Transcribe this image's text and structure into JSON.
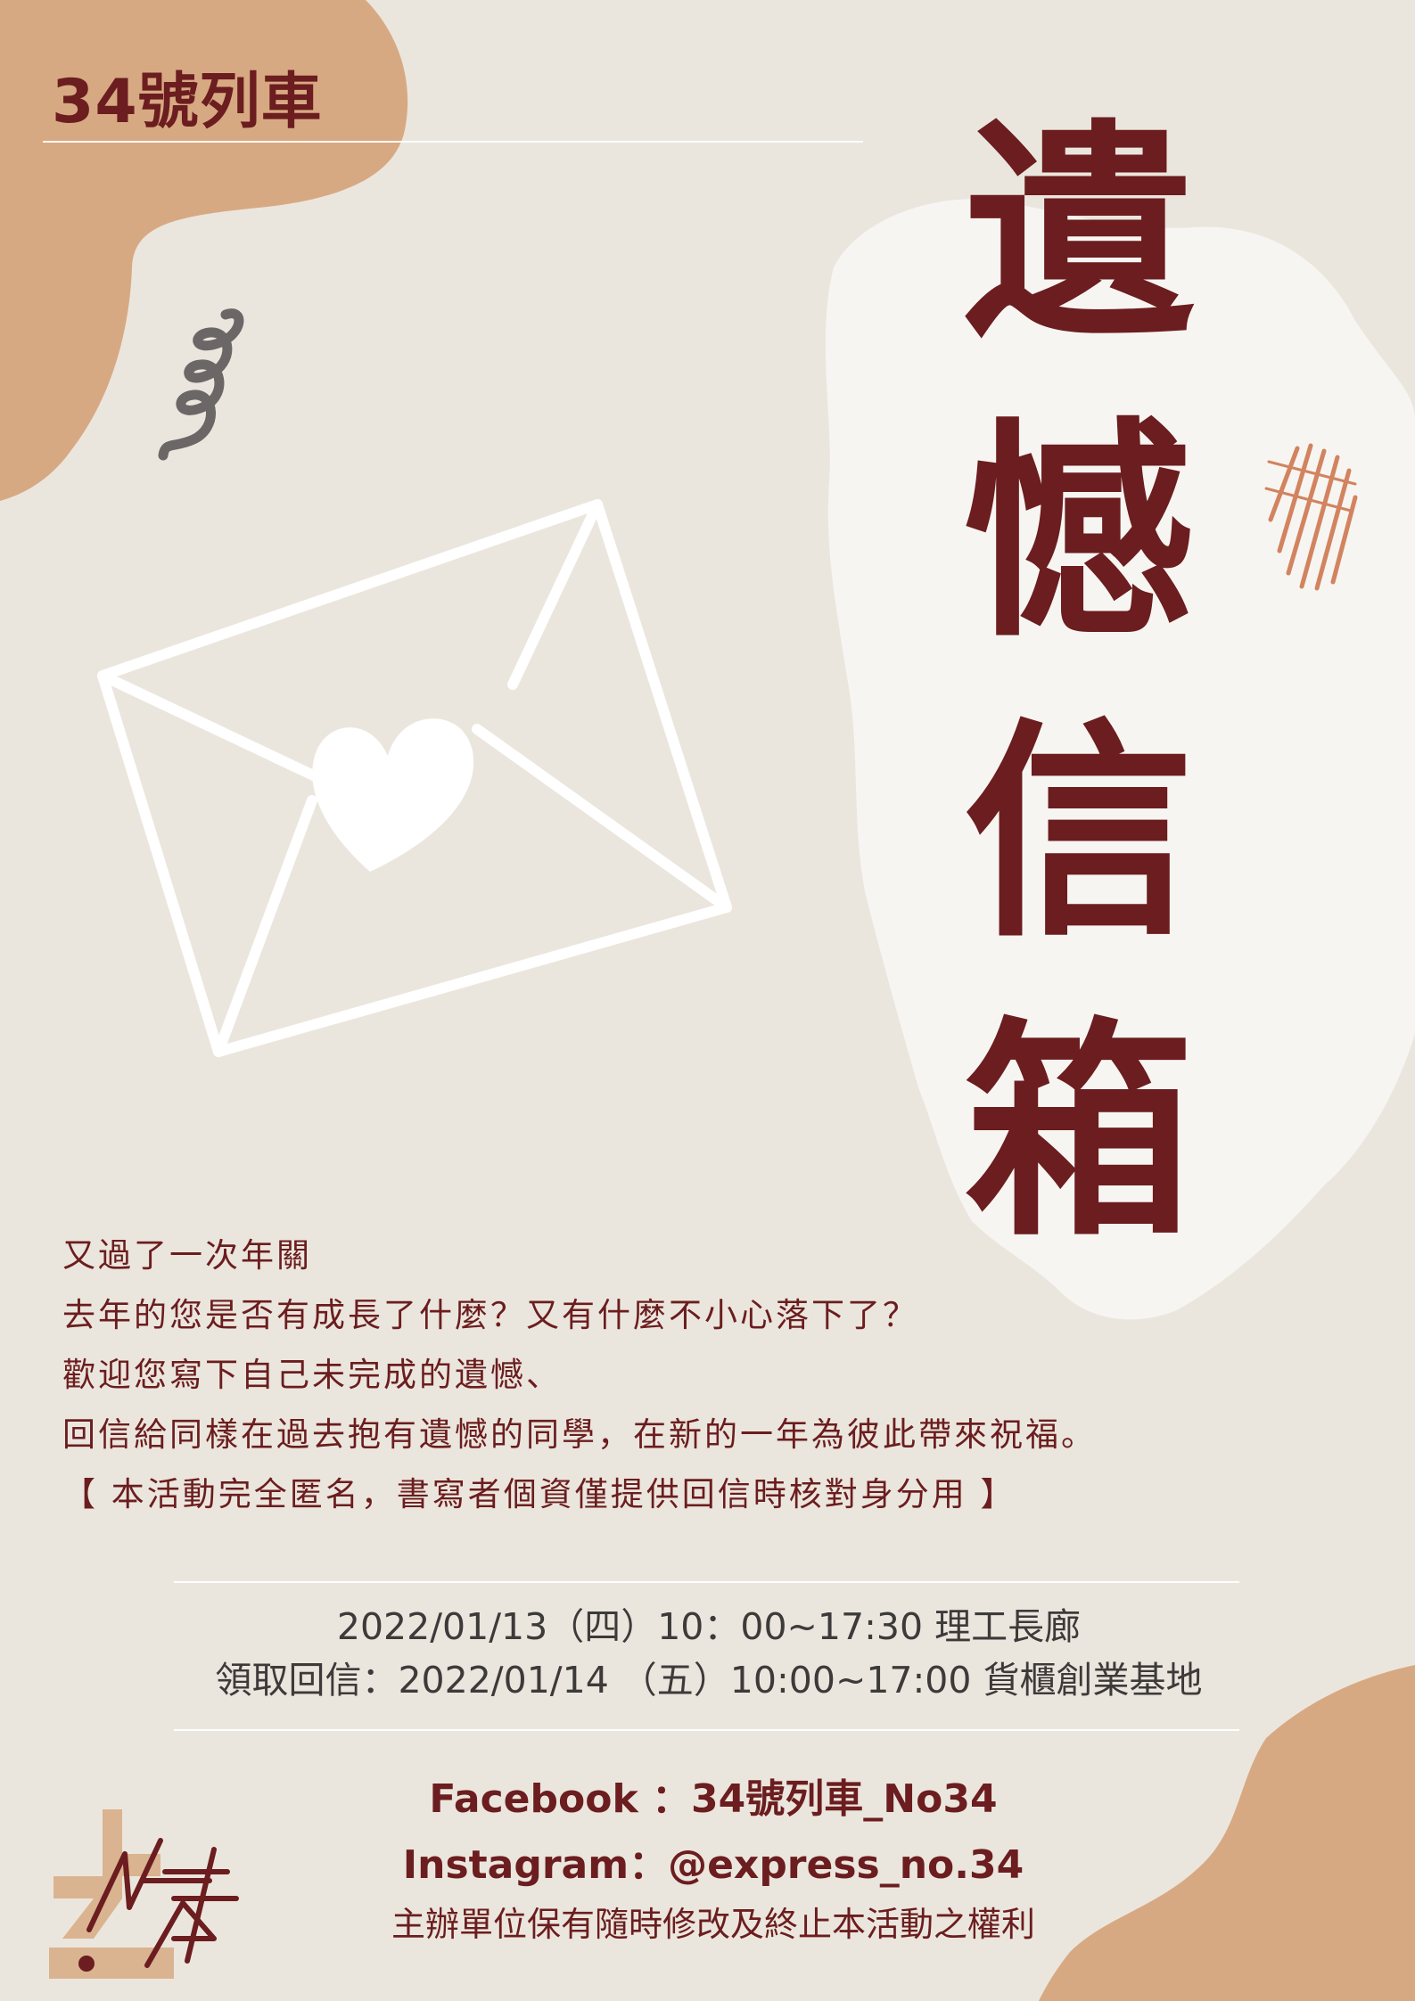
{
  "header": {
    "brand": "34號列車"
  },
  "title": {
    "chars": [
      "遺",
      "憾",
      "信",
      "箱"
    ]
  },
  "intro": {
    "lines": [
      "又過了一次年關",
      "去年的您是否有成長了什麼？又有什麼不小心落下了？",
      "歡迎您寫下自己未完成的遺憾、",
      "回信給同樣在過去抱有遺憾的同學，在新的一年為彼此帶來祝福。",
      "【 本活動完全匿名，書寫者個資僅提供回信時核對身分用 】"
    ]
  },
  "schedule": {
    "event": "2022/01/13（四）10：00~17:30 理工長廊",
    "pickup": "領取回信：2022/01/14 （五）10:00~17:00 貨櫃創業基地"
  },
  "contact": {
    "facebook": "Facebook  ：34號列車_No34",
    "instagram": "Instagram：@express_no.34"
  },
  "footer": {
    "disclaimer": "主辦單位保有隨時修改及終止本活動之權利",
    "logo_text": "34"
  },
  "colors": {
    "background": "#ebe6dd",
    "accent": "#6b1d1f",
    "blob": "#d7a983",
    "paper_patch": "#f7f5f1",
    "envelope": "#ffffff",
    "squiggle": "#6b6767",
    "scribble": "#d2835f"
  },
  "icons": [
    "envelope-heart-icon",
    "squiggle-icon",
    "scribble-icon",
    "logo-icon"
  ]
}
